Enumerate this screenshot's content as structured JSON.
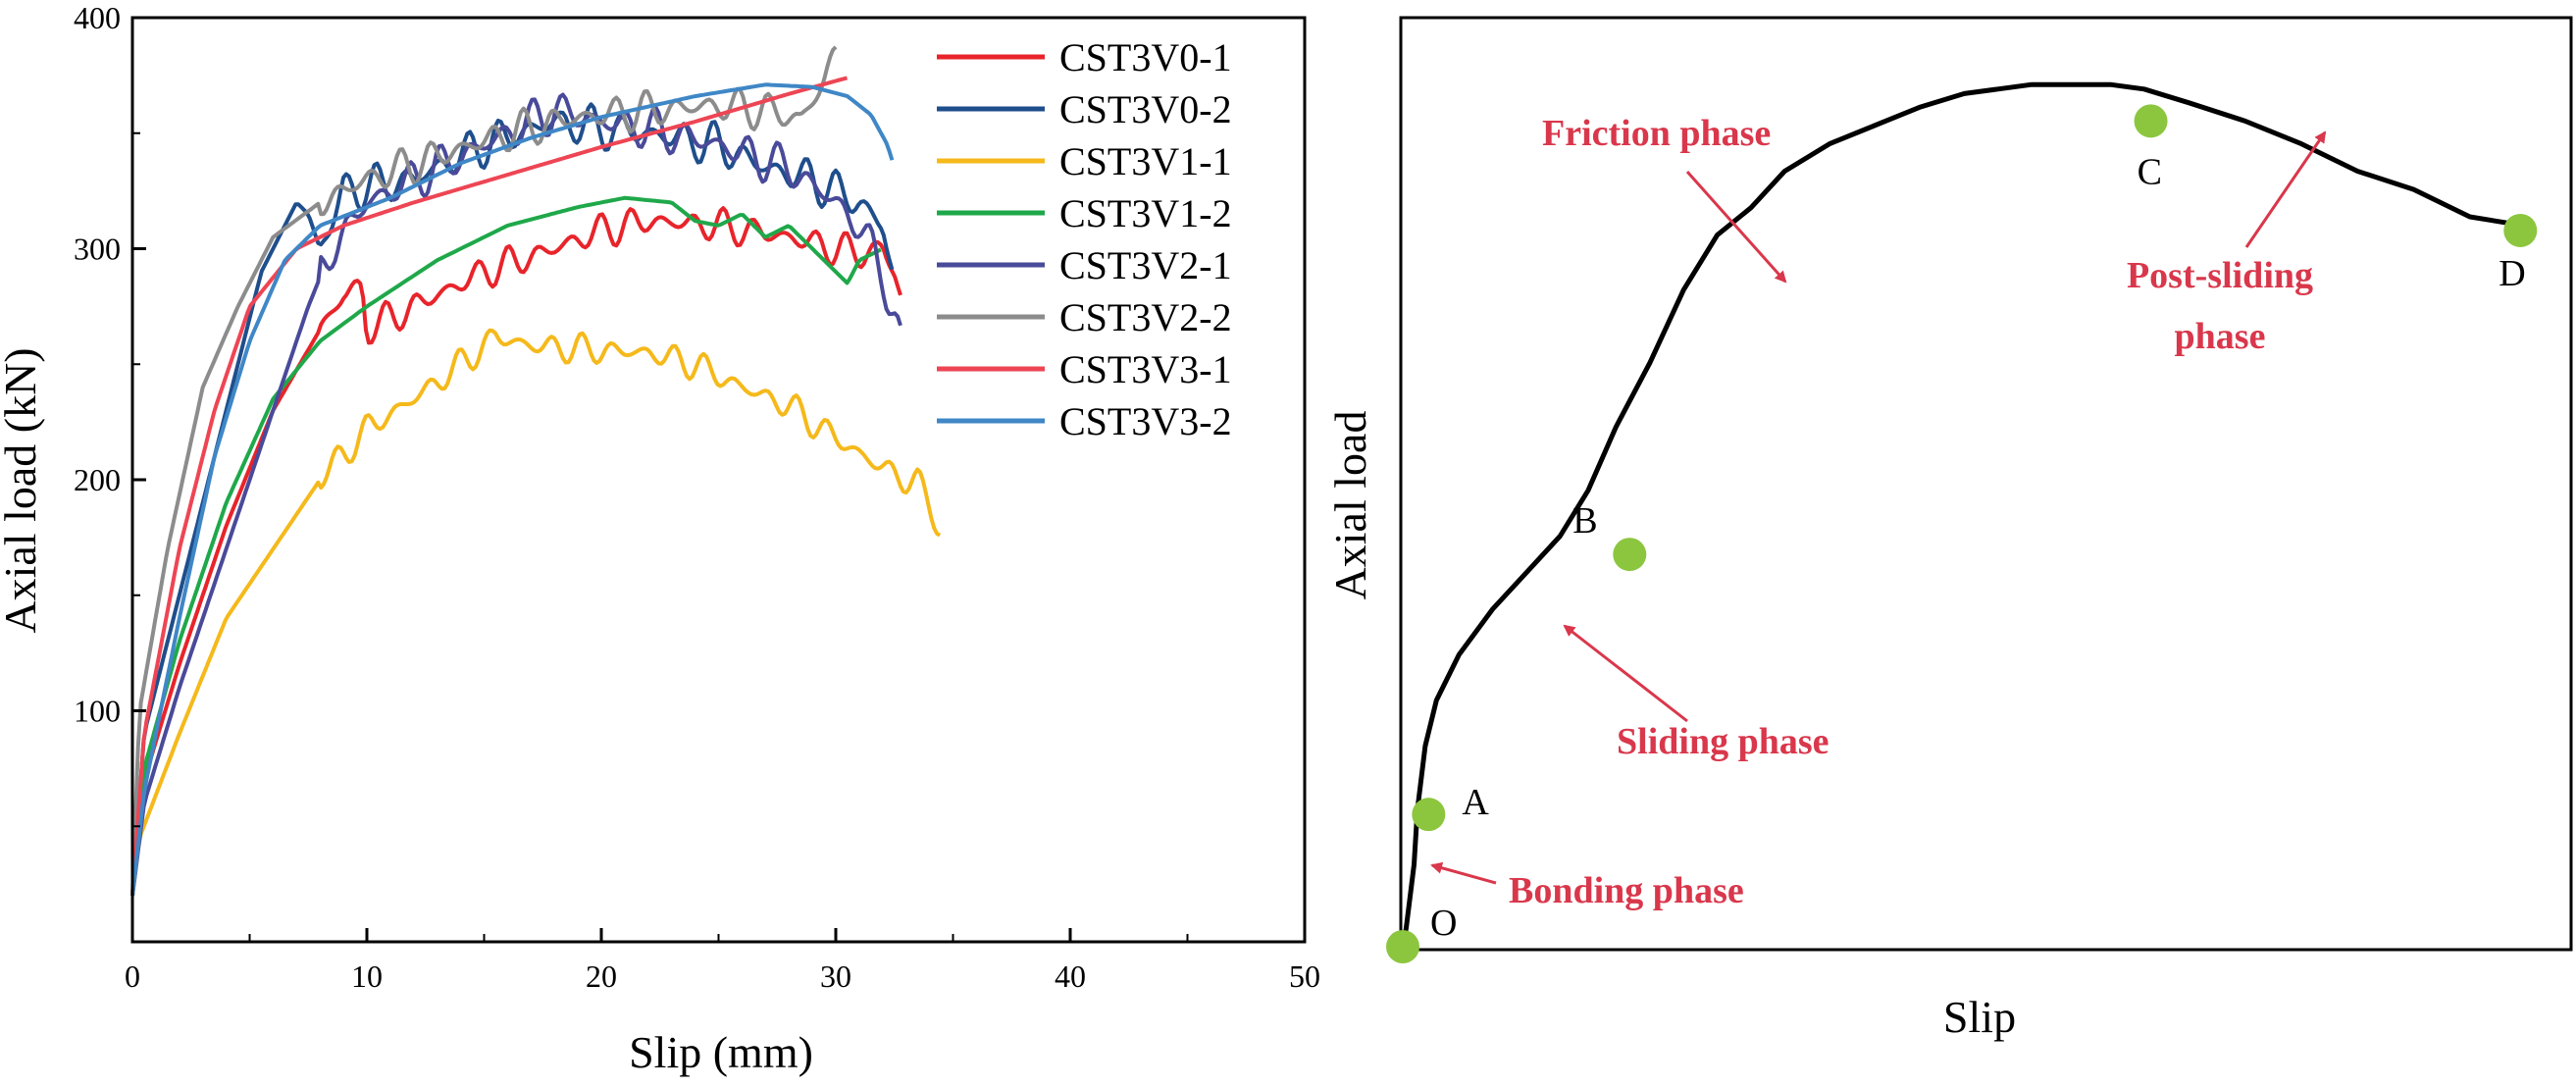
{
  "chart_data": [
    {
      "type": "line",
      "title": "",
      "xlabel": "Slip (mm)",
      "ylabel": "Axial load (kN)",
      "xlim": [
        0,
        50
      ],
      "ylim": [
        0,
        400
      ],
      "xticks": [
        "0",
        "10",
        "20",
        "30",
        "40",
        "50"
      ],
      "yticks": [
        "100",
        "200",
        "300",
        "400"
      ],
      "grid": false,
      "legend_position": "top-right",
      "series": [
        {
          "name": "CST3V0-1",
          "color": "#e8242b",
          "wiggle": 8,
          "points": [
            [
              0,
              20
            ],
            [
              0.5,
              70
            ],
            [
              2,
              120
            ],
            [
              4,
              180
            ],
            [
              6,
              230
            ],
            [
              8,
              265
            ],
            [
              9,
              280
            ],
            [
              9.8,
              283
            ],
            [
              10,
              265
            ],
            [
              12,
              275
            ],
            [
              15,
              290
            ],
            [
              18,
              300
            ],
            [
              20,
              308
            ],
            [
              22,
              312
            ],
            [
              25,
              310
            ],
            [
              28,
              305
            ],
            [
              30,
              300
            ],
            [
              31,
              298
            ],
            [
              32,
              300
            ],
            [
              32.5,
              290
            ],
            [
              32.8,
              278
            ]
          ]
        },
        {
          "name": "CST3V0-2",
          "color": "#1f4e8c",
          "wiggle": 10,
          "points": [
            [
              0,
              20
            ],
            [
              0.5,
              90
            ],
            [
              2,
              150
            ],
            [
              4,
              230
            ],
            [
              5.5,
              290
            ],
            [
              7,
              320
            ],
            [
              7.5,
              315
            ],
            [
              8,
              300
            ],
            [
              9,
              325
            ],
            [
              12,
              330
            ],
            [
              15,
              345
            ],
            [
              18,
              355
            ],
            [
              20,
              352
            ],
            [
              22,
              350
            ],
            [
              25,
              345
            ],
            [
              27,
              335
            ],
            [
              29,
              330
            ],
            [
              31,
              320
            ],
            [
              32,
              310
            ],
            [
              32.5,
              285
            ]
          ]
        },
        {
          "name": "CST3V1-1",
          "color": "#f5b91b",
          "wiggle": 7,
          "points": [
            [
              0,
              20
            ],
            [
              0.3,
              45
            ],
            [
              2,
              90
            ],
            [
              4,
              140
            ],
            [
              6,
              170
            ],
            [
              8,
              200
            ],
            [
              10,
              222
            ],
            [
              12,
              235
            ],
            [
              14,
              250
            ],
            [
              15.5,
              262
            ],
            [
              17,
              258
            ],
            [
              20,
              256
            ],
            [
              22,
              255
            ],
            [
              24,
              250
            ],
            [
              26,
              240
            ],
            [
              28,
              232
            ],
            [
              30,
              218
            ],
            [
              32,
              205
            ],
            [
              33.5,
              198
            ],
            [
              34,
              190
            ],
            [
              34.5,
              177
            ]
          ]
        },
        {
          "name": "CST3V1-2",
          "color": "#1fa84a",
          "wiggle": 0,
          "points": [
            [
              0,
              20
            ],
            [
              0.5,
              75
            ],
            [
              2,
              130
            ],
            [
              4,
              190
            ],
            [
              6,
              235
            ],
            [
              8,
              260
            ],
            [
              10,
              275
            ],
            [
              13,
              295
            ],
            [
              16,
              310
            ],
            [
              19,
              318
            ],
            [
              21,
              322
            ],
            [
              23,
              320
            ],
            [
              24,
              312
            ],
            [
              25,
              310
            ],
            [
              26,
              315
            ],
            [
              27,
              305
            ],
            [
              28,
              310
            ],
            [
              29,
              300
            ],
            [
              30,
              290
            ],
            [
              30.5,
              285
            ],
            [
              31,
              295
            ],
            [
              32,
              300
            ]
          ]
        },
        {
          "name": "CST3V2-1",
          "color": "#4a4a9a",
          "wiggle": 10,
          "points": [
            [
              0,
              20
            ],
            [
              0.5,
              60
            ],
            [
              2,
              110
            ],
            [
              4,
              170
            ],
            [
              6,
              230
            ],
            [
              7.5,
              275
            ],
            [
              8.5,
              300
            ],
            [
              10,
              320
            ],
            [
              12,
              330
            ],
            [
              15,
              345
            ],
            [
              18,
              360
            ],
            [
              20,
              355
            ],
            [
              22,
              352
            ],
            [
              25,
              345
            ],
            [
              28,
              335
            ],
            [
              30,
              320
            ],
            [
              31,
              310
            ],
            [
              32,
              290
            ],
            [
              32.5,
              270
            ],
            [
              32.8,
              257
            ]
          ]
        },
        {
          "name": "CST3V2-2",
          "color": "#8c8c8c",
          "wiggle": 9,
          "points": [
            [
              0,
              20
            ],
            [
              0.3,
              100
            ],
            [
              1.5,
              170
            ],
            [
              3,
              240
            ],
            [
              4.5,
              275
            ],
            [
              6,
              305
            ],
            [
              8,
              320
            ],
            [
              10,
              330
            ],
            [
              13,
              340
            ],
            [
              16,
              350
            ],
            [
              18,
              355
            ],
            [
              20,
              358
            ],
            [
              22,
              360
            ],
            [
              25,
              362
            ],
            [
              27,
              360
            ],
            [
              28.5,
              356
            ],
            [
              29.5,
              372
            ],
            [
              30,
              385
            ]
          ]
        },
        {
          "name": "CST3V3-1",
          "color": "#ee4554",
          "wiggle": 0,
          "points": [
            [
              0,
              20
            ],
            [
              0.5,
              90
            ],
            [
              2,
              170
            ],
            [
              3.5,
              230
            ],
            [
              5,
              275
            ],
            [
              7,
              300
            ],
            [
              9,
              310
            ],
            [
              12,
              320
            ],
            [
              16,
              332
            ],
            [
              20,
              344
            ],
            [
              24,
              355
            ],
            [
              28,
              367
            ],
            [
              30.5,
              374
            ]
          ]
        },
        {
          "name": "CST3V3-2",
          "color": "#3f87c6",
          "wiggle": 0,
          "points": [
            [
              0,
              20
            ],
            [
              0.5,
              65
            ],
            [
              2,
              140
            ],
            [
              3.5,
              210
            ],
            [
              5,
              260
            ],
            [
              6.5,
              295
            ],
            [
              8,
              310
            ],
            [
              11,
              322
            ],
            [
              14,
              337
            ],
            [
              17,
              348
            ],
            [
              20,
              357
            ],
            [
              24,
              366
            ],
            [
              27,
              371
            ],
            [
              29,
              370
            ],
            [
              30.5,
              366
            ],
            [
              31.5,
              358
            ],
            [
              32.2,
              345
            ],
            [
              32.5,
              335
            ]
          ]
        }
      ],
      "legend": [
        "CST3V0-1",
        "CST3V0-2",
        "CST3V1-1",
        "CST3V1-2",
        "CST3V2-1",
        "CST3V2-2",
        "CST3V3-1",
        "CST3V3-2"
      ]
    },
    {
      "type": "line",
      "title": "",
      "xlabel": "Slip",
      "ylabel": "Axial load",
      "series": [
        {
          "name": "",
          "color": "#000000",
          "points": [
            [
              0,
              0
            ],
            [
              0.3,
              0.02
            ],
            [
              0.6,
              0.05
            ],
            [
              1,
              0.09
            ],
            [
              1.3,
              0.15
            ],
            [
              2,
              0.22
            ],
            [
              3,
              0.27
            ],
            [
              5,
              0.32
            ],
            [
              8,
              0.37
            ],
            [
              11,
              0.41
            ],
            [
              14,
              0.45
            ],
            [
              16.5,
              0.5
            ],
            [
              19,
              0.57
            ],
            [
              22,
              0.64
            ],
            [
              25,
              0.72
            ],
            [
              28,
              0.78
            ],
            [
              31,
              0.81
            ],
            [
              34,
              0.85
            ],
            [
              38,
              0.88
            ],
            [
              42,
              0.9
            ],
            [
              46,
              0.92
            ],
            [
              50,
              0.935
            ],
            [
              53,
              0.94
            ],
            [
              56,
              0.945
            ],
            [
              58,
              0.945
            ],
            [
              60,
              0.945
            ],
            [
              63,
              0.945
            ],
            [
              66,
              0.94
            ],
            [
              70,
              0.925
            ],
            [
              75,
              0.905
            ],
            [
              80,
              0.88
            ],
            [
              85,
              0.85
            ],
            [
              90,
              0.83
            ],
            [
              95,
              0.8
            ],
            [
              100,
              0.79
            ]
          ]
        }
      ],
      "points": [
        {
          "label": "O",
          "x": 0,
          "y": 0
        },
        {
          "label": "A",
          "x": 2.3,
          "y": 0.145
        },
        {
          "label": "B",
          "x": 20.2,
          "y": 0.43
        },
        {
          "label": "C",
          "x": 66.6,
          "y": 0.905
        },
        {
          "label": "D",
          "x": 99.5,
          "y": 0.785
        }
      ],
      "point_color": "#8cc63f",
      "annotations": [
        {
          "text": "Bonding phase",
          "color": "#d9374b"
        },
        {
          "text": "Sliding phase",
          "color": "#d9374b"
        },
        {
          "text": "Friction phase",
          "color": "#d9374b"
        },
        {
          "text": "Post-sliding",
          "color": "#d9374b"
        },
        {
          "text": "phase",
          "color": "#d9374b"
        }
      ]
    }
  ]
}
